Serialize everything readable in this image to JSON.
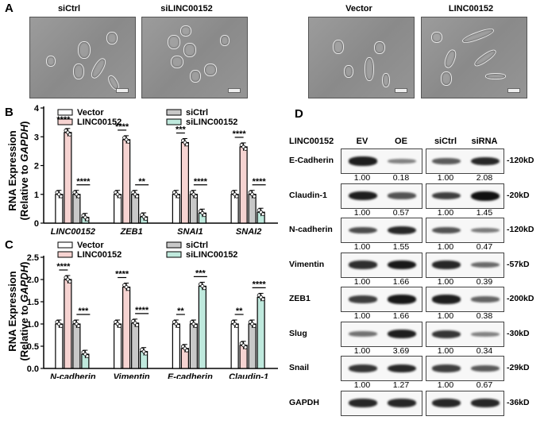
{
  "panelA": {
    "label": "A",
    "images": [
      {
        "title": "siCtrl"
      },
      {
        "title": "siLINC00152"
      },
      {
        "title": "Vector"
      },
      {
        "title": "LINC00152"
      }
    ]
  },
  "panelB": {
    "label": "B",
    "ylabel_line1": "RNA Expression",
    "ylabel_line2_prefix": "(Relative to ",
    "ylabel_line2_italic": "GAPDH",
    "ylabel_line2_suffix": ")"
  },
  "panelC": {
    "label": "C"
  },
  "panelD": {
    "label": "D",
    "header_label": "LINC00152",
    "col_headers": [
      "EV",
      "OE",
      "siCtrl",
      "siRNA"
    ],
    "rows": [
      {
        "name": "E-Cadherin",
        "kd": "-120kD",
        "values": [
          "1.00",
          "0.18",
          "1.00",
          "2.08"
        ],
        "band": [
          0.9,
          0.25,
          0.5,
          0.85
        ]
      },
      {
        "name": "Claudin-1",
        "kd": "-20kD",
        "values": [
          "1.00",
          "0.57",
          "1.00",
          "1.45"
        ],
        "band": [
          0.9,
          0.55,
          0.7,
          1.0
        ]
      },
      {
        "name": "N-cadherin",
        "kd": "-120kD",
        "values": [
          "1.00",
          "1.55",
          "1.00",
          "0.47"
        ],
        "band": [
          0.6,
          0.85,
          0.55,
          0.3
        ]
      },
      {
        "name": "Vimentin",
        "kd": "-57kD",
        "values": [
          "1.00",
          "1.66",
          "1.00",
          "0.39"
        ],
        "band": [
          0.8,
          0.95,
          0.85,
          0.4
        ]
      },
      {
        "name": "ZEB1",
        "kd": "-200kD",
        "values": [
          "1.00",
          "1.66",
          "1.00",
          "0.38"
        ],
        "band": [
          0.7,
          0.95,
          0.9,
          0.45
        ]
      },
      {
        "name": "Slug",
        "kd": "-30kD",
        "values": [
          "1.00",
          "3.69",
          "1.00",
          "0.34"
        ],
        "band": [
          0.35,
          0.9,
          0.75,
          0.25
        ]
      },
      {
        "name": "Snail",
        "kd": "-29kD",
        "values": [
          "1.00",
          "1.27",
          "1.00",
          "0.67"
        ],
        "band": [
          0.75,
          0.85,
          0.7,
          0.5
        ]
      },
      {
        "name": "GAPDH",
        "kd": "-36kD",
        "values": [],
        "band": [
          0.85,
          0.85,
          0.85,
          0.85
        ]
      }
    ]
  },
  "chart_data": [
    {
      "type": "bar",
      "title": "",
      "ylabel": "RNA Expression (Relative to GAPDH)",
      "categories": [
        "LINC00152",
        "ZEB1",
        "SNAI1",
        "SNAI2"
      ],
      "ylim": [
        0,
        4
      ],
      "yticks": [
        "0",
        "1",
        "2",
        "3",
        "4"
      ],
      "series": [
        {
          "name": "Vector",
          "color": "#ffffff",
          "values": [
            1.0,
            1.0,
            1.0,
            1.0
          ]
        },
        {
          "name": "LINC00152",
          "color": "#f6d3d1",
          "values": [
            3.15,
            2.9,
            2.8,
            2.65
          ]
        },
        {
          "name": "siCtrl",
          "color": "#c8c8c8",
          "values": [
            1.0,
            1.0,
            1.0,
            1.0
          ]
        },
        {
          "name": "siLINC00152",
          "color": "#bfe9dd",
          "values": [
            0.2,
            0.22,
            0.35,
            0.38
          ]
        }
      ],
      "significance": [
        [
          "****",
          "****"
        ],
        [
          "****",
          "**"
        ],
        [
          "***",
          "****"
        ],
        [
          "****",
          "****"
        ]
      ]
    },
    {
      "type": "bar",
      "title": "",
      "ylabel": "RNA Expression (Relative to GAPDH)",
      "categories": [
        "N-cadherin",
        "Vimentin",
        "E-cadherin",
        "Claudin-1"
      ],
      "ylim": [
        0,
        2.5
      ],
      "yticks": [
        "0.0",
        "0.5",
        "1.0",
        "1.5",
        "2.0",
        "2.5"
      ],
      "series": [
        {
          "name": "Vector",
          "color": "#ffffff",
          "values": [
            1.0,
            1.0,
            1.0,
            1.0
          ]
        },
        {
          "name": "LINC00152",
          "color": "#f6d3d1",
          "values": [
            2.0,
            1.83,
            0.45,
            0.52
          ]
        },
        {
          "name": "siCtrl",
          "color": "#c8c8c8",
          "values": [
            1.0,
            1.02,
            1.0,
            1.0
          ]
        },
        {
          "name": "siLINC00152",
          "color": "#bfe9dd",
          "values": [
            0.32,
            0.38,
            1.85,
            1.6
          ]
        }
      ],
      "significance": [
        [
          "****",
          "***"
        ],
        [
          "****",
          "****"
        ],
        [
          "**",
          "***"
        ],
        [
          "**",
          "****"
        ]
      ]
    }
  ]
}
